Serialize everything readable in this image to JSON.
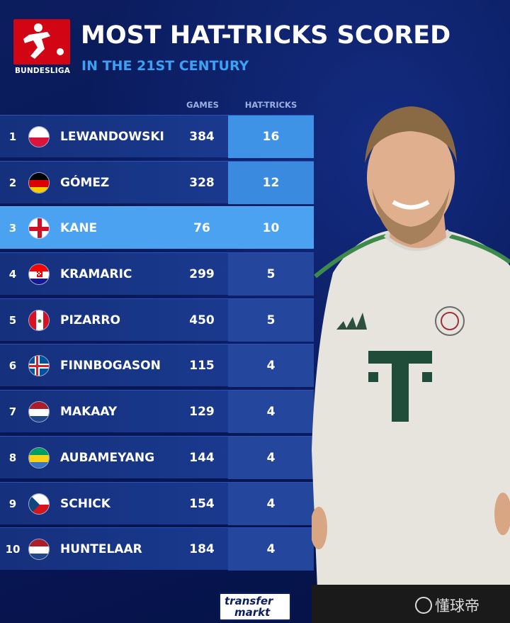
{
  "header": {
    "league_logo_text": "BUNDESLIGA",
    "title": "MOST HAT-TRICKS SCORED",
    "subtitle": "IN THE 21ST CENTURY"
  },
  "columns": {
    "games": "GAMES",
    "hat_tricks": "HAT-TRICKS"
  },
  "rows": [
    {
      "rank": "1",
      "flag": "poland",
      "name": "LEWANDOWSKI",
      "games": "384",
      "hat_tricks": "16"
    },
    {
      "rank": "2",
      "flag": "germany",
      "name": "GÓMEZ",
      "games": "328",
      "hat_tricks": "12"
    },
    {
      "rank": "3",
      "flag": "england",
      "name": "KANE",
      "games": "76",
      "hat_tricks": "10"
    },
    {
      "rank": "4",
      "flag": "croatia",
      "name": "KRAMARIC",
      "games": "299",
      "hat_tricks": "5"
    },
    {
      "rank": "5",
      "flag": "peru",
      "name": "PIZARRO",
      "games": "450",
      "hat_tricks": "5"
    },
    {
      "rank": "6",
      "flag": "iceland",
      "name": "FINNBOGASON",
      "games": "115",
      "hat_tricks": "4"
    },
    {
      "rank": "7",
      "flag": "netherlands",
      "name": "MAKAAY",
      "games": "129",
      "hat_tricks": "4"
    },
    {
      "rank": "8",
      "flag": "gabon",
      "name": "AUBAMEYANG",
      "games": "144",
      "hat_tricks": "4"
    },
    {
      "rank": "9",
      "flag": "czech-republic",
      "name": "SCHICK",
      "games": "154",
      "hat_tricks": "4"
    },
    {
      "rank": "10",
      "flag": "netherlands",
      "name": "HUNTELAAR",
      "games": "184",
      "hat_tricks": "4"
    }
  ],
  "highlighted_rank": "3",
  "footer": {
    "brand_line1": "transfer",
    "brand_line2": "markt",
    "watermark": "懂球帝"
  },
  "colors": {
    "background": "#0c1d5e",
    "accent": "#4aa2f0",
    "subtitle": "#3da0f2",
    "league_red": "#d20515"
  }
}
